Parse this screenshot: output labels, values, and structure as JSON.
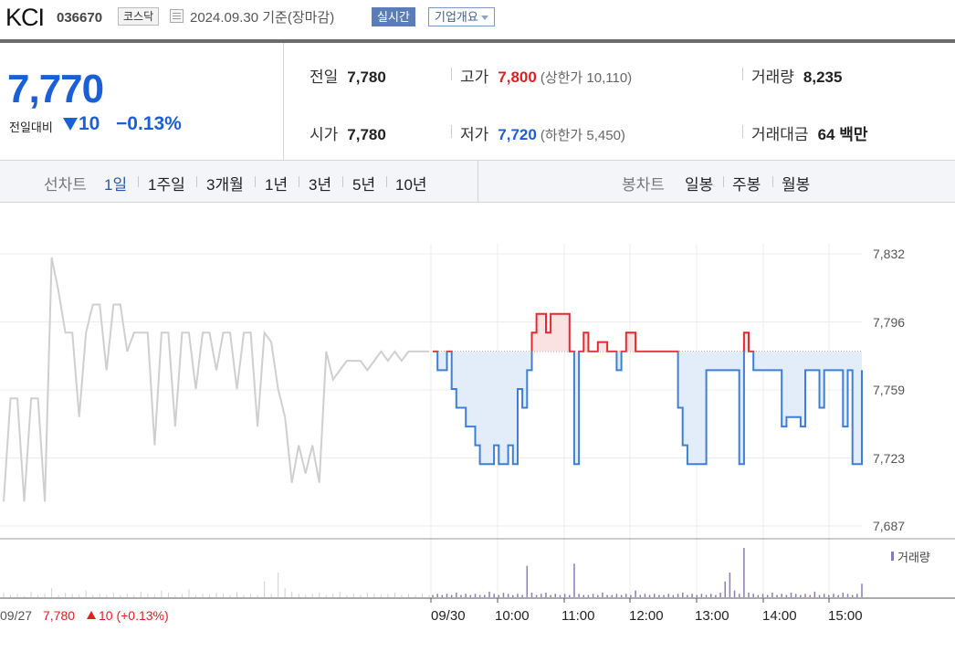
{
  "header": {
    "name": "KCI",
    "code": "036670",
    "market": "코스닥",
    "as_of": "2024.09.30  기준(장마감)",
    "realtime_button": "실시간",
    "overview_button": "기업개요"
  },
  "quote": {
    "price": "7,770",
    "change_label": "전일대비",
    "change": "10",
    "change_pct": "−0.13%",
    "prev_close_label": "전일",
    "prev_close": "7,780",
    "open_label": "시가",
    "open": "7,780",
    "high_label": "고가",
    "high": "7,800",
    "upper_limit": "(상한가 10,110)",
    "low_label": "저가",
    "low": "7,720",
    "lower_limit": "(하한가 5,450)",
    "volume_label": "거래량",
    "volume": "8,235",
    "value_label": "거래대금",
    "value": "64 백만"
  },
  "line_tabs": {
    "label": "선차트",
    "items": [
      "1일",
      "1주일",
      "3개월",
      "1년",
      "3년",
      "5년",
      "10년"
    ],
    "selected": "1일"
  },
  "candle_tabs": {
    "label": "봉차트",
    "items": [
      "일봉",
      "주봉",
      "월봉"
    ]
  },
  "chart_data": {
    "type": "line",
    "y_ticks": [
      "7,832",
      "7,796",
      "7,759",
      "7,723",
      "7,687"
    ],
    "ylim": [
      7687,
      7832
    ],
    "x_ticks": [
      "09/30",
      "10:00",
      "11:00",
      "12:00",
      "13:00",
      "14:00",
      "15:00"
    ],
    "baseline": 7780,
    "volume_legend": "거래량",
    "previous_day": {
      "date": "09/27",
      "close": "7,780",
      "change": "10 (+0.13%)",
      "values": [
        7700,
        7755,
        7755,
        7700,
        7755,
        7755,
        7700,
        7830,
        7812,
        7790,
        7790,
        7745,
        7790,
        7805,
        7805,
        7770,
        7805,
        7805,
        7780,
        7790,
        7790,
        7790,
        7730,
        7790,
        7790,
        7740,
        7790,
        7790,
        7760,
        7790,
        7790,
        7770,
        7790,
        7790,
        7760,
        7790,
        7790,
        7740,
        7790,
        7785,
        7760,
        7745,
        7710,
        7730,
        7715,
        7730,
        7710,
        7780,
        7765,
        7770,
        7775,
        7775,
        7775,
        7770,
        7775,
        7780,
        7775,
        7780,
        7775,
        7780,
        7780,
        7780,
        7780
      ],
      "volumes": [
        4,
        2,
        3,
        1,
        5,
        2,
        3,
        8,
        2,
        4,
        3,
        2,
        6,
        2,
        3,
        2,
        4,
        2,
        3,
        2,
        5,
        3,
        2,
        6,
        4,
        2,
        3,
        7,
        2,
        3,
        2,
        4,
        3,
        2,
        5,
        2,
        3,
        2,
        14,
        3,
        22,
        8,
        5,
        3,
        2,
        3,
        4,
        2,
        3,
        5,
        2,
        3,
        2,
        4,
        3,
        2,
        3,
        4,
        2,
        3,
        2,
        3,
        2
      ]
    },
    "today": {
      "date": "09/30",
      "values": [
        7780,
        7770,
        7770,
        7780,
        7760,
        7750,
        7750,
        7740,
        7740,
        7730,
        7720,
        7720,
        7720,
        7730,
        7720,
        7720,
        7730,
        7720,
        7760,
        7750,
        7770,
        7790,
        7800,
        7800,
        7790,
        7800,
        7800,
        7800,
        7800,
        7780,
        7720,
        7780,
        7790,
        7780,
        7780,
        7785,
        7785,
        7780,
        7780,
        7770,
        7780,
        7790,
        7790,
        7780,
        7780,
        7780,
        7780,
        7780,
        7780,
        7780,
        7780,
        7780,
        7750,
        7730,
        7720,
        7720,
        7720,
        7720,
        7770,
        7770,
        7770,
        7770,
        7770,
        7770,
        7770,
        7720,
        7790,
        7780,
        7770,
        7770,
        7770,
        7770,
        7770,
        7770,
        7740,
        7745,
        7745,
        7745,
        7740,
        7770,
        7770,
        7770,
        7750,
        7770,
        7770,
        7770,
        7770,
        7740,
        7770,
        7720,
        7720,
        7770
      ],
      "volumes": [
        2,
        3,
        2,
        3,
        2,
        4,
        2,
        3,
        2,
        3,
        2,
        2,
        5,
        3,
        2,
        4,
        3,
        2,
        3,
        2,
        28,
        4,
        2,
        3,
        4,
        2,
        3,
        2,
        3,
        2,
        30,
        3,
        2,
        2,
        3,
        2,
        4,
        2,
        2,
        3,
        2,
        3,
        2,
        6,
        2,
        3,
        2,
        3,
        2,
        2,
        3,
        2,
        3,
        4,
        2,
        3,
        2,
        3,
        2,
        3,
        2,
        4,
        14,
        22,
        6,
        3,
        44,
        4,
        3,
        2,
        3,
        2,
        4,
        2,
        3,
        2,
        4,
        3,
        2,
        3,
        2,
        5,
        2,
        3,
        2,
        3,
        2,
        4,
        3,
        2,
        3,
        12
      ]
    }
  }
}
